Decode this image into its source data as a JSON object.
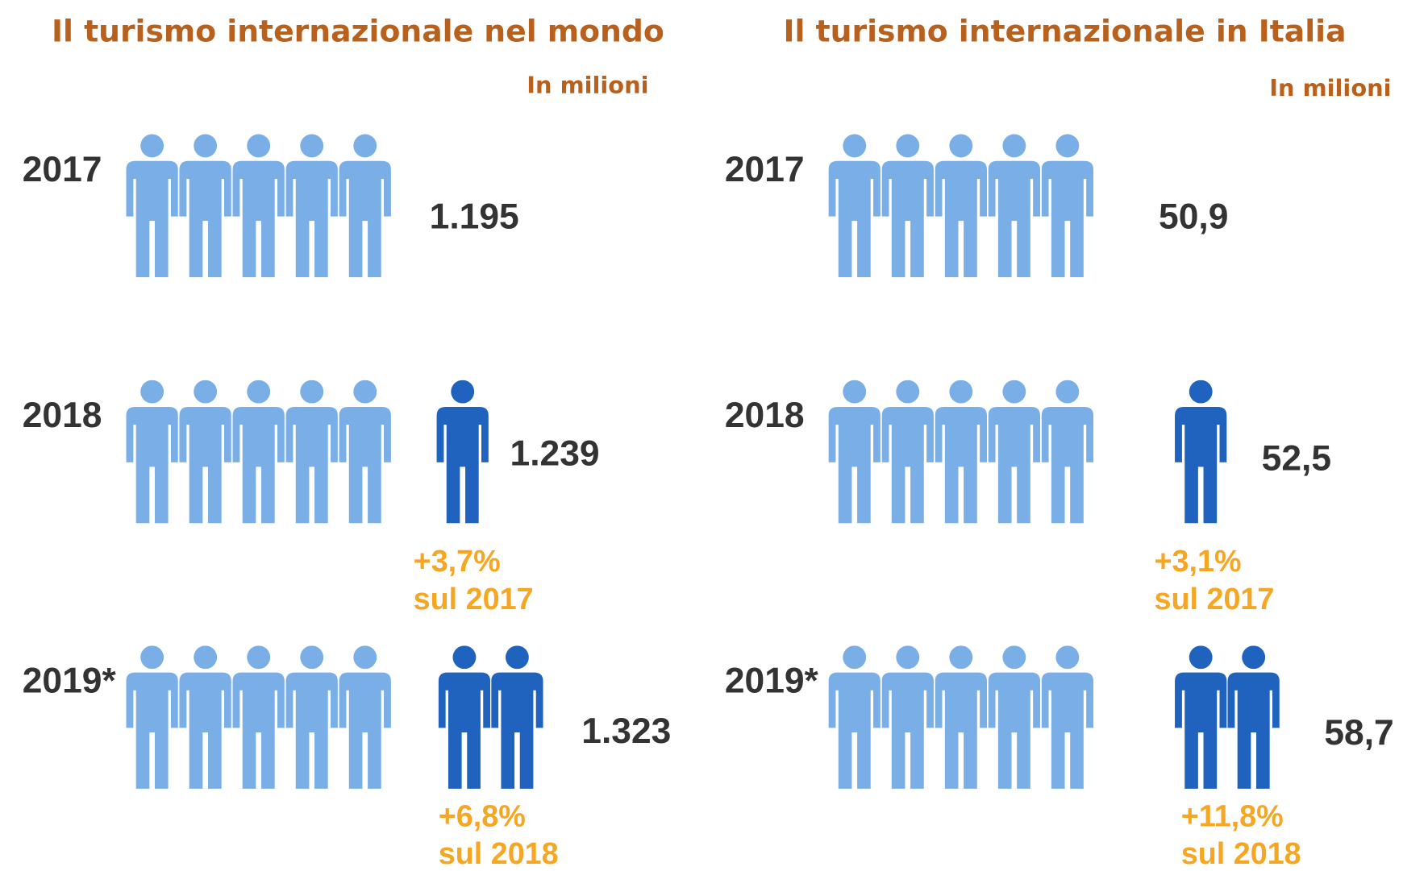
{
  "panels": [
    {
      "title": "Il turismo internazionale nel mondo",
      "unit": "In milioni",
      "rows": [
        {
          "year": "2017",
          "value": "1.195"
        },
        {
          "year": "2018",
          "value": "1.239",
          "change": "+3,7%",
          "reference": "sul 2017"
        },
        {
          "year": "2019*",
          "value": "1.323",
          "change": "+6,8%",
          "reference": "sul 2018"
        }
      ]
    },
    {
      "title": "Il turismo internazionale in Italia",
      "unit": "In milioni",
      "rows": [
        {
          "year": "2017",
          "value": "50,9"
        },
        {
          "year": "2018",
          "value": "52,5",
          "change": "+3,1%",
          "reference": "sul 2017"
        },
        {
          "year": "2019*",
          "value": "58,7",
          "change": "+11,8%",
          "reference": "sul 2018"
        }
      ]
    }
  ]
}
